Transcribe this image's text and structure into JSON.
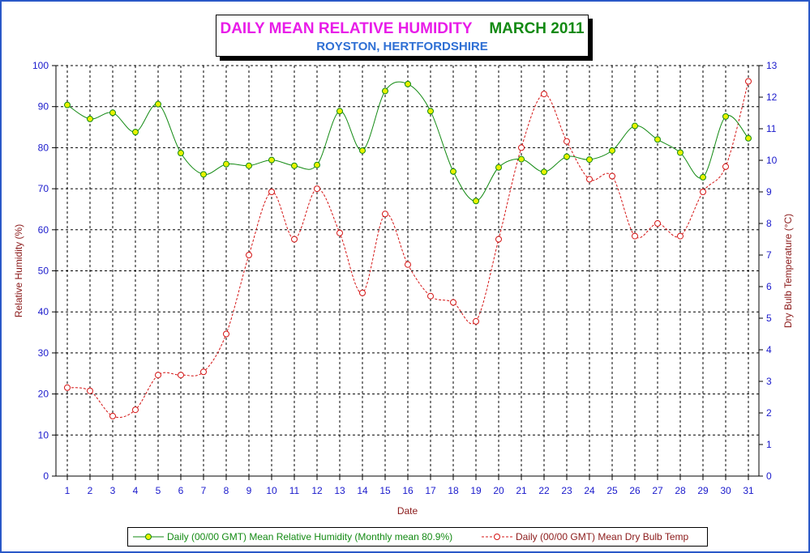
{
  "title": {
    "main": "DAILY MEAN RELATIVE HUMIDITY",
    "period": "MARCH 2011",
    "location": "ROYSTON, HERTFORDSHIRE"
  },
  "colors": {
    "frame": "#2a58c8",
    "axis_text": "#1a1acc",
    "axis_title": "#8b1a1a",
    "rh_line": "#138a13",
    "rh_marker_fill": "#e8f200",
    "temp_line": "#d41414",
    "grid": "#000000"
  },
  "chart_data": {
    "type": "line",
    "xlabel": "Date",
    "ylabel": "Relative Humidity (%)",
    "y2label": "Dry Bulb Temperature (°C)",
    "x": [
      1,
      2,
      3,
      4,
      5,
      6,
      7,
      8,
      9,
      10,
      11,
      12,
      13,
      14,
      15,
      16,
      17,
      18,
      19,
      20,
      21,
      22,
      23,
      24,
      25,
      26,
      27,
      28,
      29,
      30,
      31
    ],
    "ylim": [
      0,
      100
    ],
    "y_ticks": [
      0,
      10,
      20,
      30,
      40,
      50,
      60,
      70,
      80,
      90,
      100
    ],
    "y2lim": [
      0,
      13
    ],
    "y2_ticks": [
      0,
      1,
      2,
      3,
      4,
      5,
      6,
      7,
      8,
      9,
      10,
      11,
      12,
      13
    ],
    "grid": true,
    "legend_position": "bottom",
    "series": [
      {
        "name": "Daily (00/00 GMT) Mean Relative Humidity (Monthly mean 80.9%)",
        "axis": "left",
        "style": "solid",
        "values": [
          90.4,
          87.0,
          88.5,
          83.8,
          90.6,
          78.7,
          73.5,
          76.0,
          75.6,
          77.0,
          75.6,
          75.8,
          88.9,
          79.3,
          93.8,
          95.5,
          88.9,
          74.2,
          67.0,
          75.2,
          77.2,
          74.1,
          77.8,
          77.1,
          79.3,
          85.3,
          82.0,
          78.8,
          72.8,
          87.6,
          82.3
        ]
      },
      {
        "name": "Daily (00/00 GMT) Mean Dry Bulb Temp",
        "axis": "right",
        "style": "dashed",
        "values": [
          2.8,
          2.7,
          1.9,
          2.1,
          3.2,
          3.2,
          3.3,
          4.5,
          7.0,
          9.0,
          7.5,
          9.1,
          7.7,
          5.8,
          8.3,
          6.7,
          5.7,
          5.5,
          4.9,
          7.5,
          10.4,
          12.1,
          10.6,
          9.4,
          9.5,
          7.6,
          8.0,
          7.6,
          9.0,
          9.8,
          12.5
        ]
      }
    ]
  }
}
